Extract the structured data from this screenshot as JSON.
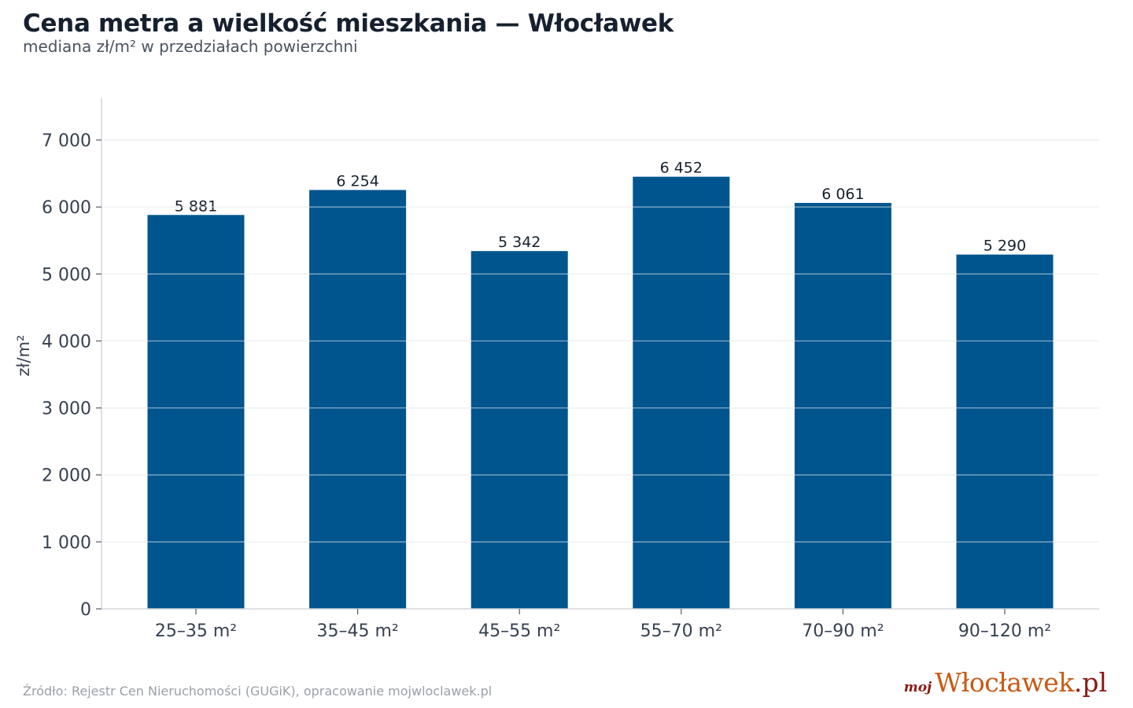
{
  "header": {
    "title": "Cena metra a wielkość mieszkania — Włocławek",
    "subtitle": "mediana zł/m² w przedziałach powierzchni"
  },
  "footer": {
    "source": "Źródło: Rejestr Cen Nieruchomości (GUGiK), opracowanie mojwloclawek.pl",
    "logo_prefix": "moj",
    "logo_main": "Włocławek",
    "logo_domain": ".pl"
  },
  "colors": {
    "bar": "#01558e",
    "grid": "#e2e5e8",
    "axis": "#d3d7db",
    "tick_text": "#374151",
    "value_text": "#16202e"
  },
  "chart_data": {
    "type": "bar",
    "title": "Cena metra a wielkość mieszkania — Włocławek",
    "subtitle": "mediana zł/m² w przedziałach powierzchni",
    "xlabel": "",
    "ylabel": "zł/m²",
    "categories": [
      "25–35 m²",
      "35–45 m²",
      "45–55 m²",
      "55–70 m²",
      "70–90 m²",
      "90–120 m²"
    ],
    "values": [
      5881,
      6254,
      5342,
      6452,
      6061,
      5290
    ],
    "value_labels": [
      "5 881",
      "6 254",
      "5 342",
      "6 452",
      "6 061",
      "5 290"
    ],
    "ylim": [
      0,
      7600
    ],
    "yticks": [
      0,
      1000,
      2000,
      3000,
      4000,
      5000,
      6000,
      7000
    ],
    "ytick_labels": [
      "0",
      "1 000",
      "2 000",
      "3 000",
      "4 000",
      "5 000",
      "6 000",
      "7 000"
    ],
    "grid": true,
    "legend": "none"
  }
}
